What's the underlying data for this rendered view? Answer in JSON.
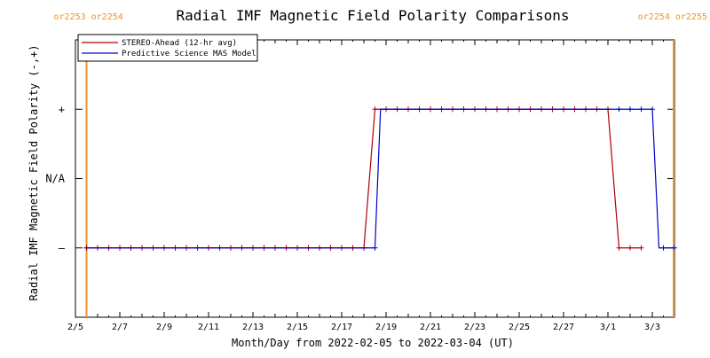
{
  "chart_data": {
    "type": "line",
    "title": "Radial IMF Magnetic Field Polarity Comparisons",
    "xlabel": "Month/Day from 2022-02-05 to 2022-03-04 (UT)",
    "ylabel": "Radial IMF Magnetic Field Polarity (-,+)",
    "x_range_days": [
      0,
      27
    ],
    "x_ticks": [
      {
        "day": 0,
        "label": "2/5"
      },
      {
        "day": 2,
        "label": "2/7"
      },
      {
        "day": 4,
        "label": "2/9"
      },
      {
        "day": 6,
        "label": "2/11"
      },
      {
        "day": 8,
        "label": "2/13"
      },
      {
        "day": 10,
        "label": "2/15"
      },
      {
        "day": 12,
        "label": "2/17"
      },
      {
        "day": 14,
        "label": "2/19"
      },
      {
        "day": 16,
        "label": "2/21"
      },
      {
        "day": 18,
        "label": "2/23"
      },
      {
        "day": 20,
        "label": "2/25"
      },
      {
        "day": 22,
        "label": "2/27"
      },
      {
        "day": 24,
        "label": "3/1"
      },
      {
        "day": 26,
        "label": "3/3"
      }
    ],
    "y_range": [
      -2,
      2
    ],
    "y_ticks": [
      {
        "value": 1,
        "label": "+"
      },
      {
        "value": 0,
        "label": "N/A"
      },
      {
        "value": -1,
        "label": "–"
      }
    ],
    "carrington_markers": [
      {
        "day": 0.5,
        "color": "#e8962b",
        "labels": [
          "or2253",
          "or2254"
        ],
        "side": "left"
      },
      {
        "day": 27.0,
        "color": "#e8962b",
        "labels": [
          "or2254",
          "or2255"
        ],
        "side": "right"
      }
    ],
    "legend_position": "top-left",
    "series": [
      {
        "name": "STEREO-Ahead (12-hr avg)",
        "color": "#b00000",
        "markers": true,
        "points": [
          [
            0.5,
            -1
          ],
          [
            1.0,
            -1
          ],
          [
            1.5,
            -1
          ],
          [
            2.0,
            -1
          ],
          [
            2.5,
            -1
          ],
          [
            3.0,
            -1
          ],
          [
            3.5,
            -1
          ],
          [
            4.0,
            -1
          ],
          [
            4.5,
            -1
          ],
          [
            5.0,
            -1
          ],
          [
            5.5,
            -1
          ],
          [
            6.0,
            -1
          ],
          [
            6.5,
            -1
          ],
          [
            7.0,
            -1
          ],
          [
            7.5,
            -1
          ],
          [
            8.0,
            -1
          ],
          [
            8.5,
            -1
          ],
          [
            9.0,
            -1
          ],
          [
            9.5,
            -1
          ],
          [
            10.0,
            -1
          ],
          [
            10.5,
            -1
          ],
          [
            11.0,
            -1
          ],
          [
            11.5,
            -1
          ],
          [
            12.0,
            -1
          ],
          [
            12.5,
            -1
          ],
          [
            13.0,
            -1
          ],
          [
            13.5,
            1
          ],
          [
            14.0,
            1
          ],
          [
            14.5,
            1
          ],
          [
            15.0,
            1
          ],
          [
            15.5,
            1
          ],
          [
            16.0,
            1
          ],
          [
            16.5,
            1
          ],
          [
            17.0,
            1
          ],
          [
            17.5,
            1
          ],
          [
            18.0,
            1
          ],
          [
            18.5,
            1
          ],
          [
            19.0,
            1
          ],
          [
            19.5,
            1
          ],
          [
            20.0,
            1
          ],
          [
            20.5,
            1
          ],
          [
            21.0,
            1
          ],
          [
            21.5,
            1
          ],
          [
            22.0,
            1
          ],
          [
            22.5,
            1
          ],
          [
            23.0,
            1
          ],
          [
            23.5,
            1
          ],
          [
            24.0,
            1
          ],
          [
            24.5,
            -1
          ],
          [
            25.0,
            -1
          ],
          [
            25.5,
            -1
          ]
        ]
      },
      {
        "name": "Predictive Science MAS Model",
        "color": "#0000cc",
        "markers": false,
        "points": [
          [
            0.5,
            -1
          ],
          [
            13.5,
            -1
          ],
          [
            13.75,
            1
          ],
          [
            26.0,
            1
          ],
          [
            26.3,
            -1
          ],
          [
            27.0,
            -1
          ]
        ]
      }
    ],
    "blue_markers_days": [
      0.5,
      1.0,
      1.5,
      2.0,
      2.5,
      3.0,
      3.5,
      4.0,
      4.5,
      5.0,
      5.5,
      6.0,
      6.5,
      7.0,
      7.5,
      8.0,
      8.5,
      9.0,
      9.5,
      10.0,
      10.5,
      11.0,
      11.5,
      12.0,
      12.5,
      13.0,
      13.5,
      14.0,
      14.5,
      15.0,
      15.5,
      16.0,
      16.5,
      17.0,
      17.5,
      18.0,
      18.5,
      19.0,
      19.5,
      20.0,
      20.5,
      21.0,
      21.5,
      22.0,
      22.5,
      23.0,
      23.5,
      24.0,
      24.5,
      25.0,
      25.5,
      26.0,
      26.5,
      27.0
    ]
  }
}
